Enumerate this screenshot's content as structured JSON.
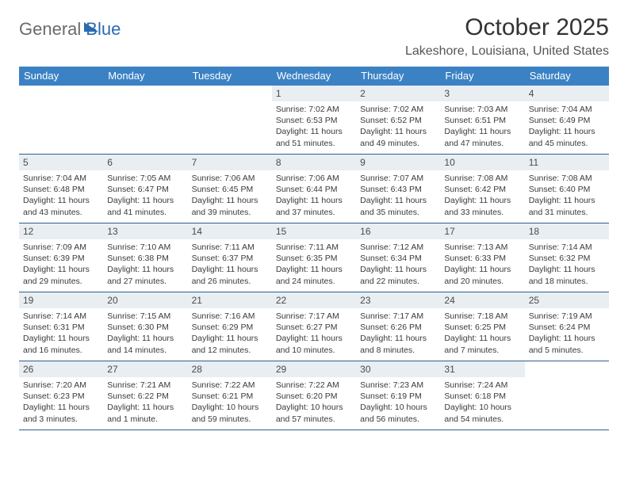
{
  "brand": {
    "part1": "General",
    "part2": "Blue"
  },
  "title": "October 2025",
  "location": "Lakeshore, Louisiana, United States",
  "colors": {
    "header_bg": "#3b82c4",
    "daynum_bg": "#e9eef2",
    "rule": "#2f5f8f",
    "brand_gray": "#6b6b6b",
    "brand_blue": "#2a6bb0"
  },
  "dow": [
    "Sunday",
    "Monday",
    "Tuesday",
    "Wednesday",
    "Thursday",
    "Friday",
    "Saturday"
  ],
  "weeks": [
    [
      {
        "day": "",
        "sunrise": "",
        "sunset": "",
        "daylight": ""
      },
      {
        "day": "",
        "sunrise": "",
        "sunset": "",
        "daylight": ""
      },
      {
        "day": "",
        "sunrise": "",
        "sunset": "",
        "daylight": ""
      },
      {
        "day": "1",
        "sunrise": "Sunrise: 7:02 AM",
        "sunset": "Sunset: 6:53 PM",
        "daylight": "Daylight: 11 hours and 51 minutes."
      },
      {
        "day": "2",
        "sunrise": "Sunrise: 7:02 AM",
        "sunset": "Sunset: 6:52 PM",
        "daylight": "Daylight: 11 hours and 49 minutes."
      },
      {
        "day": "3",
        "sunrise": "Sunrise: 7:03 AM",
        "sunset": "Sunset: 6:51 PM",
        "daylight": "Daylight: 11 hours and 47 minutes."
      },
      {
        "day": "4",
        "sunrise": "Sunrise: 7:04 AM",
        "sunset": "Sunset: 6:49 PM",
        "daylight": "Daylight: 11 hours and 45 minutes."
      }
    ],
    [
      {
        "day": "5",
        "sunrise": "Sunrise: 7:04 AM",
        "sunset": "Sunset: 6:48 PM",
        "daylight": "Daylight: 11 hours and 43 minutes."
      },
      {
        "day": "6",
        "sunrise": "Sunrise: 7:05 AM",
        "sunset": "Sunset: 6:47 PM",
        "daylight": "Daylight: 11 hours and 41 minutes."
      },
      {
        "day": "7",
        "sunrise": "Sunrise: 7:06 AM",
        "sunset": "Sunset: 6:45 PM",
        "daylight": "Daylight: 11 hours and 39 minutes."
      },
      {
        "day": "8",
        "sunrise": "Sunrise: 7:06 AM",
        "sunset": "Sunset: 6:44 PM",
        "daylight": "Daylight: 11 hours and 37 minutes."
      },
      {
        "day": "9",
        "sunrise": "Sunrise: 7:07 AM",
        "sunset": "Sunset: 6:43 PM",
        "daylight": "Daylight: 11 hours and 35 minutes."
      },
      {
        "day": "10",
        "sunrise": "Sunrise: 7:08 AM",
        "sunset": "Sunset: 6:42 PM",
        "daylight": "Daylight: 11 hours and 33 minutes."
      },
      {
        "day": "11",
        "sunrise": "Sunrise: 7:08 AM",
        "sunset": "Sunset: 6:40 PM",
        "daylight": "Daylight: 11 hours and 31 minutes."
      }
    ],
    [
      {
        "day": "12",
        "sunrise": "Sunrise: 7:09 AM",
        "sunset": "Sunset: 6:39 PM",
        "daylight": "Daylight: 11 hours and 29 minutes."
      },
      {
        "day": "13",
        "sunrise": "Sunrise: 7:10 AM",
        "sunset": "Sunset: 6:38 PM",
        "daylight": "Daylight: 11 hours and 27 minutes."
      },
      {
        "day": "14",
        "sunrise": "Sunrise: 7:11 AM",
        "sunset": "Sunset: 6:37 PM",
        "daylight": "Daylight: 11 hours and 26 minutes."
      },
      {
        "day": "15",
        "sunrise": "Sunrise: 7:11 AM",
        "sunset": "Sunset: 6:35 PM",
        "daylight": "Daylight: 11 hours and 24 minutes."
      },
      {
        "day": "16",
        "sunrise": "Sunrise: 7:12 AM",
        "sunset": "Sunset: 6:34 PM",
        "daylight": "Daylight: 11 hours and 22 minutes."
      },
      {
        "day": "17",
        "sunrise": "Sunrise: 7:13 AM",
        "sunset": "Sunset: 6:33 PM",
        "daylight": "Daylight: 11 hours and 20 minutes."
      },
      {
        "day": "18",
        "sunrise": "Sunrise: 7:14 AM",
        "sunset": "Sunset: 6:32 PM",
        "daylight": "Daylight: 11 hours and 18 minutes."
      }
    ],
    [
      {
        "day": "19",
        "sunrise": "Sunrise: 7:14 AM",
        "sunset": "Sunset: 6:31 PM",
        "daylight": "Daylight: 11 hours and 16 minutes."
      },
      {
        "day": "20",
        "sunrise": "Sunrise: 7:15 AM",
        "sunset": "Sunset: 6:30 PM",
        "daylight": "Daylight: 11 hours and 14 minutes."
      },
      {
        "day": "21",
        "sunrise": "Sunrise: 7:16 AM",
        "sunset": "Sunset: 6:29 PM",
        "daylight": "Daylight: 11 hours and 12 minutes."
      },
      {
        "day": "22",
        "sunrise": "Sunrise: 7:17 AM",
        "sunset": "Sunset: 6:27 PM",
        "daylight": "Daylight: 11 hours and 10 minutes."
      },
      {
        "day": "23",
        "sunrise": "Sunrise: 7:17 AM",
        "sunset": "Sunset: 6:26 PM",
        "daylight": "Daylight: 11 hours and 8 minutes."
      },
      {
        "day": "24",
        "sunrise": "Sunrise: 7:18 AM",
        "sunset": "Sunset: 6:25 PM",
        "daylight": "Daylight: 11 hours and 7 minutes."
      },
      {
        "day": "25",
        "sunrise": "Sunrise: 7:19 AM",
        "sunset": "Sunset: 6:24 PM",
        "daylight": "Daylight: 11 hours and 5 minutes."
      }
    ],
    [
      {
        "day": "26",
        "sunrise": "Sunrise: 7:20 AM",
        "sunset": "Sunset: 6:23 PM",
        "daylight": "Daylight: 11 hours and 3 minutes."
      },
      {
        "day": "27",
        "sunrise": "Sunrise: 7:21 AM",
        "sunset": "Sunset: 6:22 PM",
        "daylight": "Daylight: 11 hours and 1 minute."
      },
      {
        "day": "28",
        "sunrise": "Sunrise: 7:22 AM",
        "sunset": "Sunset: 6:21 PM",
        "daylight": "Daylight: 10 hours and 59 minutes."
      },
      {
        "day": "29",
        "sunrise": "Sunrise: 7:22 AM",
        "sunset": "Sunset: 6:20 PM",
        "daylight": "Daylight: 10 hours and 57 minutes."
      },
      {
        "day": "30",
        "sunrise": "Sunrise: 7:23 AM",
        "sunset": "Sunset: 6:19 PM",
        "daylight": "Daylight: 10 hours and 56 minutes."
      },
      {
        "day": "31",
        "sunrise": "Sunrise: 7:24 AM",
        "sunset": "Sunset: 6:18 PM",
        "daylight": "Daylight: 10 hours and 54 minutes."
      },
      {
        "day": "",
        "sunrise": "",
        "sunset": "",
        "daylight": ""
      }
    ]
  ]
}
